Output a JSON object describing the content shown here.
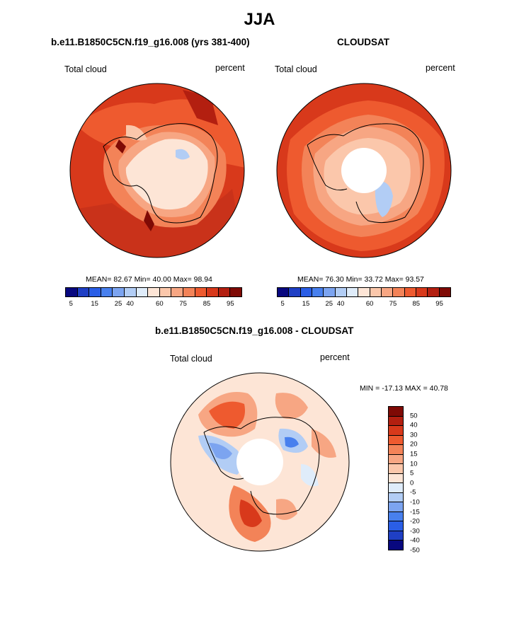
{
  "figure": {
    "title": "JJA"
  },
  "panels": {
    "model": {
      "title": "b.e11.B1850C5CN.f19_g16.008 (yrs 381-400)",
      "variable": "Total cloud",
      "units": "percent",
      "stats": "MEAN=  82.67  Min=  40.00  Max=  98.94"
    },
    "obs": {
      "title": "CLOUDSAT",
      "variable": "Total cloud",
      "units": "percent",
      "stats": "MEAN=  76.30  Min=  33.72  Max=  93.57"
    },
    "diff": {
      "title": "b.e11.B1850C5CN.f19_g16.008 - CLOUDSAT",
      "variable": "Total cloud",
      "units": "percent",
      "stats": "MIN = -17.13 MAX =  40.78"
    }
  },
  "colorbars": {
    "abs_colors": [
      "#08087f",
      "#1f3fc4",
      "#2a5ee6",
      "#4880ee",
      "#7ca4f0",
      "#b2cdf5",
      "#dfecfa",
      "#fde5d6",
      "#fbc7ab",
      "#f7a683",
      "#f38358",
      "#ee5a2f",
      "#d8391b",
      "#b31f10",
      "#7f0a05"
    ],
    "abs_ticks": [
      "5",
      "15",
      "25",
      "40",
      "60",
      "75",
      "85",
      "95"
    ],
    "diff_colors": [
      "#7f0a05",
      "#b31f10",
      "#d8391b",
      "#ee5a2f",
      "#f38358",
      "#f7a683",
      "#fbc7ab",
      "#fde5d6",
      "#dfecfa",
      "#b2cdf5",
      "#7ca4f0",
      "#4880ee",
      "#2a5ee6",
      "#1f3fc4",
      "#08087f"
    ],
    "diff_ticks": [
      "50",
      "40",
      "30",
      "20",
      "15",
      "10",
      "5",
      "0",
      "-5",
      "-10",
      "-15",
      "-20",
      "-30",
      "-40",
      "-50"
    ]
  }
}
